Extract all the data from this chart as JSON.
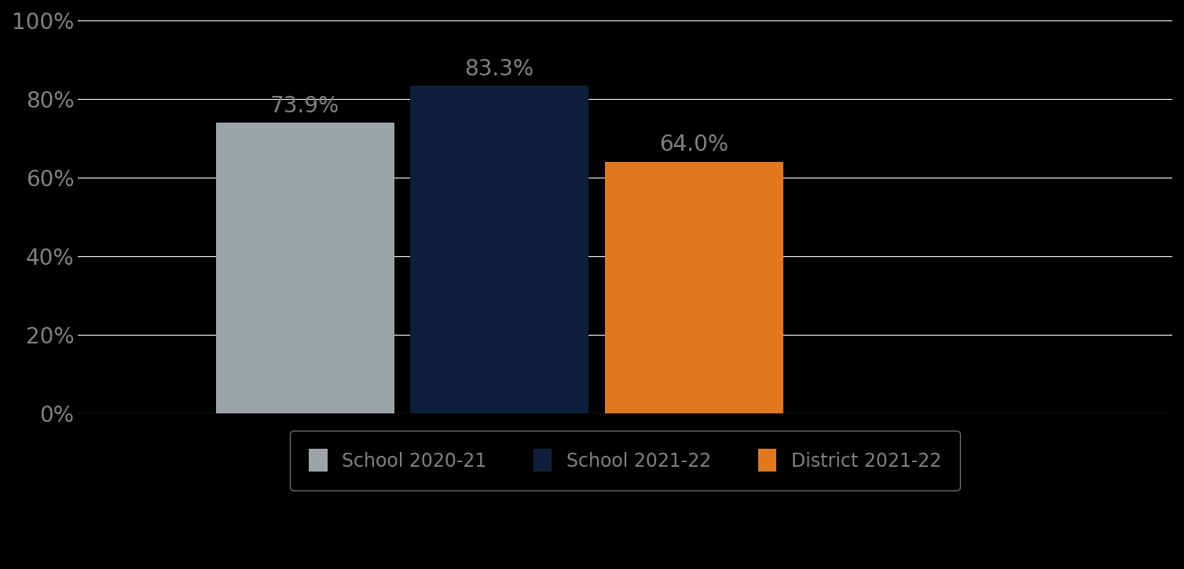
{
  "categories": [
    "School 2020-21",
    "School 2021-22",
    "District 2021-22"
  ],
  "values": [
    73.9,
    83.3,
    64.0
  ],
  "bar_colors": [
    "#9da4a8",
    "#0d1f3c",
    "#e07820"
  ],
  "label_texts": [
    "73.9%",
    "83.3%",
    "64.0%"
  ],
  "ylim": [
    0,
    100
  ],
  "yticks": [
    0,
    20,
    40,
    60,
    80,
    100
  ],
  "ytick_labels": [
    "0%",
    "20%",
    "40%",
    "60%",
    "80%",
    "100%"
  ],
  "background_color": "#000000",
  "grid_color": "#ffffff",
  "text_color": "#808080",
  "label_fontsize": 20,
  "tick_fontsize": 20,
  "legend_fontsize": 17,
  "bar_width": 0.22,
  "x_positions": [
    0.28,
    0.52,
    0.76
  ],
  "xlim": [
    0.0,
    1.35
  ]
}
